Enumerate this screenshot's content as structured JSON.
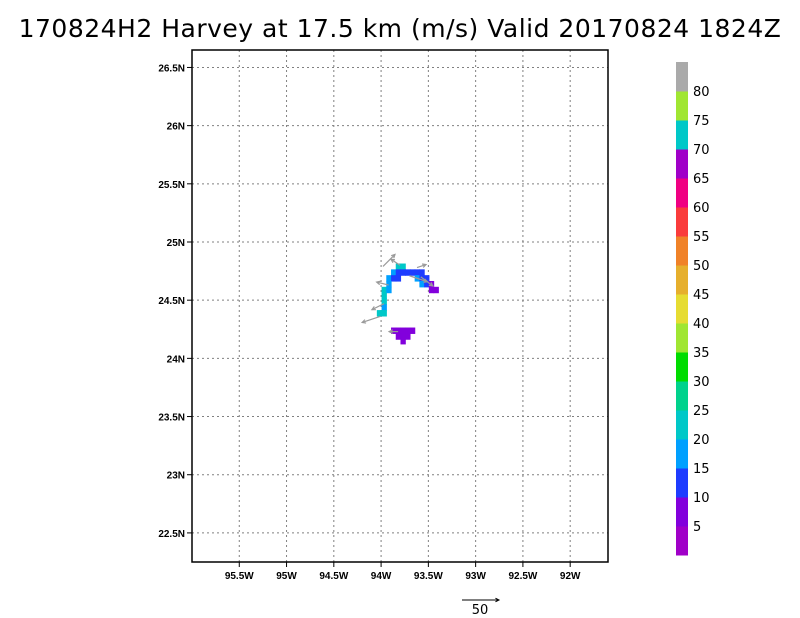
{
  "title": "170824H2 Harvey at 17.5 km (m/s) Valid 20170824 1824Z",
  "chart_data": {
    "type": "heatmap",
    "title": "170824H2 Harvey at 17.5 km (m/s) Valid 20170824 1824Z",
    "xlim": [
      -96.0,
      -91.6
    ],
    "ylim": [
      22.25,
      26.65
    ],
    "x_ticks": [
      {
        "value": -95.5,
        "label": "95.5W"
      },
      {
        "value": -95.0,
        "label": "95W"
      },
      {
        "value": -94.5,
        "label": "94.5W"
      },
      {
        "value": -94.0,
        "label": "94W"
      },
      {
        "value": -93.5,
        "label": "93.5W"
      },
      {
        "value": -93.0,
        "label": "93W"
      },
      {
        "value": -92.5,
        "label": "92.5W"
      },
      {
        "value": -92.0,
        "label": "92W"
      }
    ],
    "y_ticks": [
      {
        "value": 22.5,
        "label": "22.5N"
      },
      {
        "value": 23.0,
        "label": "23N"
      },
      {
        "value": 23.5,
        "label": "23.5N"
      },
      {
        "value": 24.0,
        "label": "24N"
      },
      {
        "value": 24.5,
        "label": "24.5N"
      },
      {
        "value": 25.0,
        "label": "25N"
      },
      {
        "value": 25.5,
        "label": "25.5N"
      },
      {
        "value": 26.0,
        "label": "26N"
      },
      {
        "value": 26.5,
        "label": "26.5N"
      }
    ],
    "grid": true,
    "cell_size_deg": 0.05,
    "cells": [
      {
        "lon": -93.82,
        "lat": 24.79,
        "speed": 22
      },
      {
        "lon": -93.77,
        "lat": 24.79,
        "speed": 22
      },
      {
        "lon": -93.87,
        "lat": 24.74,
        "speed": 17
      },
      {
        "lon": -93.82,
        "lat": 24.74,
        "speed": 12
      },
      {
        "lon": -93.77,
        "lat": 24.74,
        "speed": 12
      },
      {
        "lon": -93.72,
        "lat": 24.74,
        "speed": 12
      },
      {
        "lon": -93.67,
        "lat": 24.74,
        "speed": 12
      },
      {
        "lon": -93.62,
        "lat": 24.74,
        "speed": 12
      },
      {
        "lon": -93.57,
        "lat": 24.74,
        "speed": 12
      },
      {
        "lon": -93.92,
        "lat": 24.69,
        "speed": 17
      },
      {
        "lon": -93.87,
        "lat": 24.69,
        "speed": 12
      },
      {
        "lon": -93.82,
        "lat": 24.69,
        "speed": 12
      },
      {
        "lon": -93.62,
        "lat": 24.69,
        "speed": 17
      },
      {
        "lon": -93.57,
        "lat": 24.69,
        "speed": 12
      },
      {
        "lon": -93.52,
        "lat": 24.69,
        "speed": 12
      },
      {
        "lon": -93.92,
        "lat": 24.64,
        "speed": 17
      },
      {
        "lon": -93.57,
        "lat": 24.64,
        "speed": 17
      },
      {
        "lon": -93.52,
        "lat": 24.64,
        "speed": 12
      },
      {
        "lon": -93.47,
        "lat": 24.64,
        "speed": 7
      },
      {
        "lon": -93.97,
        "lat": 24.59,
        "speed": 22
      },
      {
        "lon": -93.92,
        "lat": 24.59,
        "speed": 17
      },
      {
        "lon": -93.47,
        "lat": 24.59,
        "speed": 7
      },
      {
        "lon": -93.42,
        "lat": 24.59,
        "speed": 7
      },
      {
        "lon": -93.97,
        "lat": 24.54,
        "speed": 22
      },
      {
        "lon": -93.97,
        "lat": 24.49,
        "speed": 22
      },
      {
        "lon": -93.97,
        "lat": 24.44,
        "speed": 17
      },
      {
        "lon": -94.02,
        "lat": 24.39,
        "speed": 22
      },
      {
        "lon": -93.97,
        "lat": 24.39,
        "speed": 22
      },
      {
        "lon": -93.87,
        "lat": 24.24,
        "speed": 7
      },
      {
        "lon": -93.82,
        "lat": 24.24,
        "speed": 7
      },
      {
        "lon": -93.77,
        "lat": 24.24,
        "speed": 7
      },
      {
        "lon": -93.72,
        "lat": 24.24,
        "speed": 7
      },
      {
        "lon": -93.67,
        "lat": 24.24,
        "speed": 7
      },
      {
        "lon": -93.82,
        "lat": 24.19,
        "speed": 7
      },
      {
        "lon": -93.77,
        "lat": 24.19,
        "speed": 7
      },
      {
        "lon": -93.72,
        "lat": 24.19,
        "speed": 7
      },
      {
        "lon": -93.77,
        "lat": 24.15,
        "speed": 7
      }
    ],
    "vectors": [
      {
        "lon": -93.98,
        "lat": 24.79,
        "u": 4,
        "v": 4
      },
      {
        "lon": -93.8,
        "lat": 24.8,
        "u": -3,
        "v": 2
      },
      {
        "lon": -93.62,
        "lat": 24.78,
        "u": 3,
        "v": 1
      },
      {
        "lon": -93.7,
        "lat": 24.71,
        "u": 6,
        "v": -2
      },
      {
        "lon": -93.58,
        "lat": 24.7,
        "u": 4,
        "v": -3
      },
      {
        "lon": -93.92,
        "lat": 24.63,
        "u": -4,
        "v": 1
      },
      {
        "lon": -93.97,
        "lat": 24.47,
        "u": -4,
        "v": -2
      },
      {
        "lon": -94.01,
        "lat": 24.36,
        "u": -6,
        "v": -2
      },
      {
        "lon": -93.82,
        "lat": 24.23,
        "u": -3,
        "v": 0
      }
    ],
    "colorbar": {
      "levels": [
        0,
        5,
        10,
        15,
        20,
        25,
        30,
        35,
        40,
        45,
        50,
        55,
        60,
        65,
        70,
        75,
        80,
        85
      ],
      "colors": [
        "#a000c8",
        "#8200dc",
        "#1e3cff",
        "#00a0ff",
        "#00c8c8",
        "#00d28c",
        "#00dc00",
        "#a0e632",
        "#e6dc32",
        "#e6af2d",
        "#f08228",
        "#fa3c3c",
        "#f00082",
        "#a000c8",
        "#00c8c8",
        "#a0e632",
        "#aaaaaa"
      ],
      "labels": [
        "5",
        "10",
        "15",
        "20",
        "25",
        "30",
        "35",
        "40",
        "45",
        "50",
        "55",
        "60",
        "65",
        "70",
        "75",
        "80"
      ]
    },
    "reference_vector": {
      "label": "50",
      "value": 50
    }
  }
}
